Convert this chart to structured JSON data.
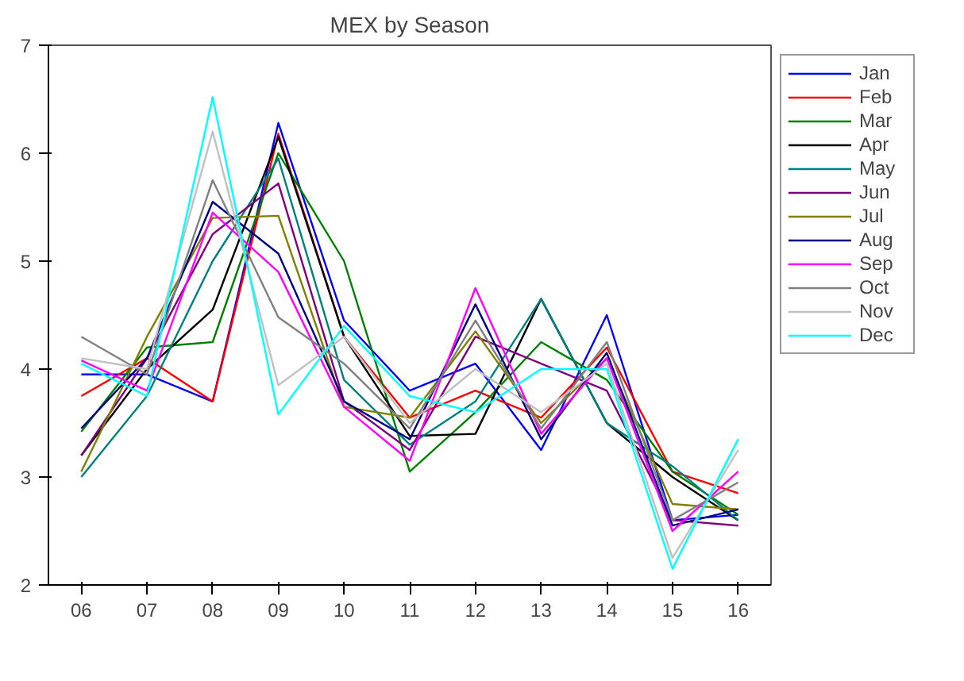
{
  "chart_data": {
    "type": "line",
    "title": "MEX by Season",
    "categories": [
      "06",
      "07",
      "08",
      "09",
      "10",
      "11",
      "12",
      "13",
      "14",
      "15",
      "16"
    ],
    "ylim": [
      2,
      7
    ],
    "yticks": [
      2,
      3,
      4,
      5,
      6,
      7
    ],
    "grid": false,
    "legend": "right",
    "series": [
      {
        "name": "Jan",
        "color": "#0000ff",
        "values": [
          3.95,
          3.95,
          3.7,
          6.28,
          4.45,
          3.8,
          4.05,
          3.25,
          4.5,
          2.6,
          2.65
        ]
      },
      {
        "name": "Feb",
        "color": "#ff0000",
        "values": [
          3.75,
          4.1,
          3.7,
          6.18,
          4.3,
          3.55,
          3.8,
          3.55,
          4.2,
          3.05,
          2.85
        ]
      },
      {
        "name": "Mar",
        "color": "#008000",
        "values": [
          3.42,
          4.2,
          4.25,
          6.0,
          5.0,
          3.05,
          3.6,
          4.25,
          3.9,
          3.05,
          2.65
        ]
      },
      {
        "name": "Apr",
        "color": "#000000",
        "values": [
          3.2,
          4.0,
          4.55,
          6.15,
          4.3,
          3.38,
          3.4,
          4.65,
          3.5,
          3.0,
          2.6
        ]
      },
      {
        "name": "May",
        "color": "#008080",
        "values": [
          3.0,
          3.75,
          5.0,
          5.95,
          3.9,
          3.3,
          3.7,
          4.65,
          3.5,
          3.1,
          2.6
        ]
      },
      {
        "name": "Jun",
        "color": "#800080",
        "values": [
          3.2,
          4.1,
          5.25,
          5.72,
          3.7,
          3.25,
          4.3,
          4.05,
          3.8,
          2.6,
          2.55
        ]
      },
      {
        "name": "Jul",
        "color": "#808000",
        "values": [
          3.05,
          4.3,
          5.4,
          5.42,
          3.65,
          3.55,
          4.35,
          3.5,
          4.1,
          2.75,
          2.7
        ]
      },
      {
        "name": "Aug",
        "color": "#000080",
        "values": [
          3.45,
          4.1,
          5.55,
          5.07,
          3.7,
          3.35,
          4.6,
          3.35,
          4.15,
          2.55,
          2.7
        ]
      },
      {
        "name": "Sep",
        "color": "#ff00ff",
        "values": [
          4.08,
          3.8,
          5.45,
          4.9,
          3.65,
          3.15,
          4.75,
          3.4,
          4.1,
          2.5,
          3.05
        ]
      },
      {
        "name": "Oct",
        "color": "#808080",
        "values": [
          4.3,
          3.95,
          5.75,
          4.48,
          4.05,
          3.45,
          4.45,
          3.45,
          4.25,
          2.6,
          2.95
        ]
      },
      {
        "name": "Nov",
        "color": "#c0c0c0",
        "values": [
          4.1,
          4.0,
          6.2,
          3.85,
          4.3,
          3.5,
          4.0,
          3.6,
          4.05,
          2.25,
          3.25
        ]
      },
      {
        "name": "Dec",
        "color": "#00ffff",
        "values": [
          4.05,
          3.75,
          6.52,
          3.58,
          4.4,
          3.75,
          3.6,
          4.0,
          4.0,
          2.15,
          3.35
        ]
      }
    ]
  }
}
